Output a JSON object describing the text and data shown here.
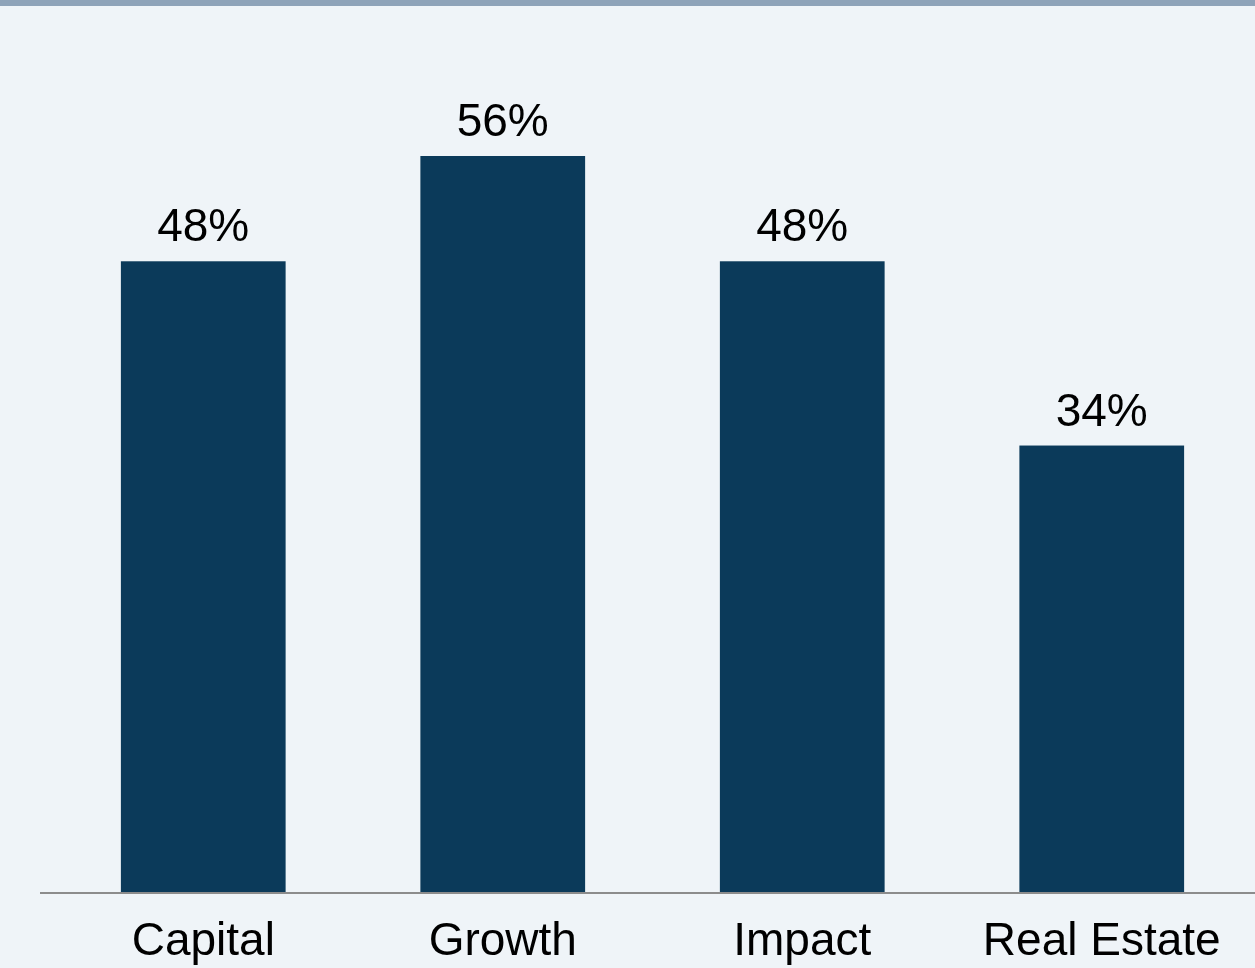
{
  "chart_data": {
    "type": "bar",
    "categories": [
      "Capital",
      "Growth",
      "Impact",
      "Real Estate"
    ],
    "values": [
      48,
      56,
      48,
      34
    ],
    "color": "#0b3a5a",
    "data_labels": true,
    "value_labels": [
      "48%",
      "56%",
      "48%",
      "34%"
    ]
  }
}
